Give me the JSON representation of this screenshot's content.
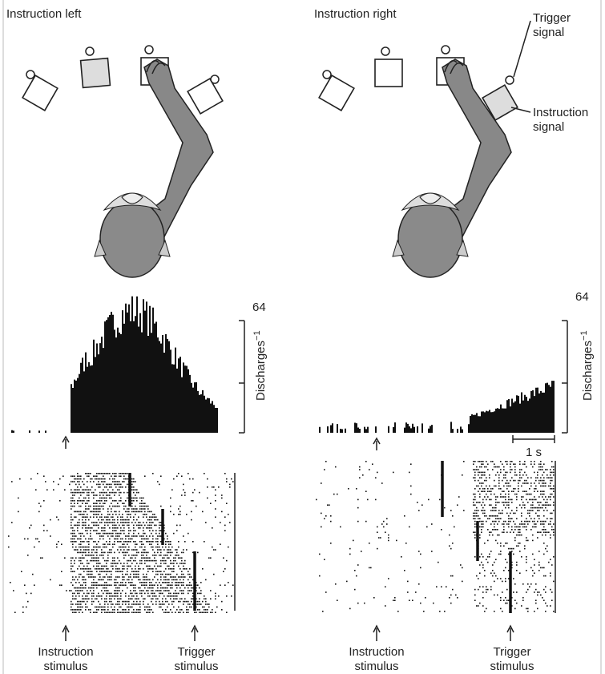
{
  "left": {
    "title": "Instruction left",
    "scale_max": "64",
    "scale_label": "Discharges",
    "scale_exponent": "−1",
    "instruction_label": [
      "Instruction",
      "stimulus"
    ],
    "trigger_label": [
      "Trigger",
      "stimulus"
    ]
  },
  "right": {
    "title": "Instruction right",
    "scale_max": "64",
    "scale_label": "Discharges",
    "scale_exponent": "−1",
    "time_scale": "1 s",
    "trigger_signal": [
      "Trigger",
      "signal"
    ],
    "instruction_signal": [
      "Instruction",
      "signal"
    ],
    "instruction_label": [
      "Instruction",
      "stimulus"
    ],
    "trigger_label": [
      "Trigger",
      "stimulus"
    ]
  }
}
